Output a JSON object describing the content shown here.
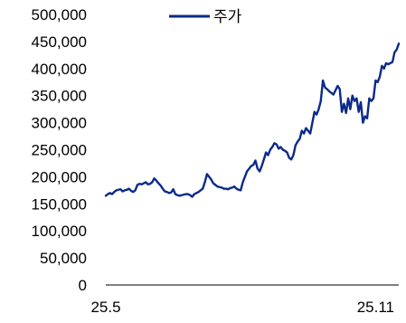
{
  "chart_data": {
    "type": "line",
    "title": "",
    "xlabel": "",
    "ylabel": "",
    "ylim": [
      0,
      500000
    ],
    "y_ticks": [
      0,
      50000,
      100000,
      150000,
      200000,
      250000,
      300000,
      350000,
      400000,
      450000,
      500000
    ],
    "y_tick_labels": [
      "0",
      "50,000",
      "100,000",
      "150,000",
      "200,000",
      "250,000",
      "300,000",
      "350,000",
      "400,000",
      "450,000",
      "500,000"
    ],
    "x_ticks": [
      "25.5",
      "25.11"
    ],
    "x_tick_index": [
      0,
      128
    ],
    "grid": false,
    "legend": {
      "position": "top-center"
    },
    "colors": {
      "line": "#0B2A8A"
    },
    "series": [
      {
        "name": "주가",
        "values": [
          165000,
          168000,
          170000,
          168000,
          172000,
          175000,
          176000,
          177000,
          173000,
          175000,
          176000,
          178000,
          174000,
          172000,
          175000,
          185000,
          187000,
          186000,
          188000,
          190000,
          186000,
          187000,
          190000,
          197000,
          193000,
          188000,
          184000,
          178000,
          173000,
          172000,
          170000,
          171000,
          177000,
          168000,
          166000,
          165000,
          166000,
          167000,
          168000,
          168000,
          166000,
          163000,
          168000,
          170000,
          172000,
          175000,
          178000,
          190000,
          205000,
          200000,
          195000,
          188000,
          185000,
          182000,
          181000,
          180000,
          178000,
          178000,
          177000,
          179000,
          180000,
          182000,
          178000,
          176000,
          175000,
          190000,
          200000,
          210000,
          215000,
          220000,
          222000,
          230000,
          215000,
          210000,
          220000,
          232000,
          245000,
          240000,
          250000,
          255000,
          262000,
          260000,
          252000,
          255000,
          250000,
          248000,
          245000,
          235000,
          232000,
          240000,
          258000,
          265000,
          270000,
          285000,
          280000,
          290000,
          285000,
          280000,
          300000,
          320000,
          315000,
          325000,
          340000,
          378000,
          365000,
          362000,
          358000,
          355000,
          352000,
          360000,
          368000,
          362000,
          320000,
          335000,
          318000,
          345000,
          325000,
          350000,
          340000,
          345000,
          320000,
          338000,
          300000,
          312000,
          308000,
          345000,
          340000,
          345000,
          378000,
          375000,
          385000,
          405000,
          400000,
          410000,
          408000,
          410000,
          412000,
          430000,
          435000,
          446000
        ]
      }
    ]
  }
}
